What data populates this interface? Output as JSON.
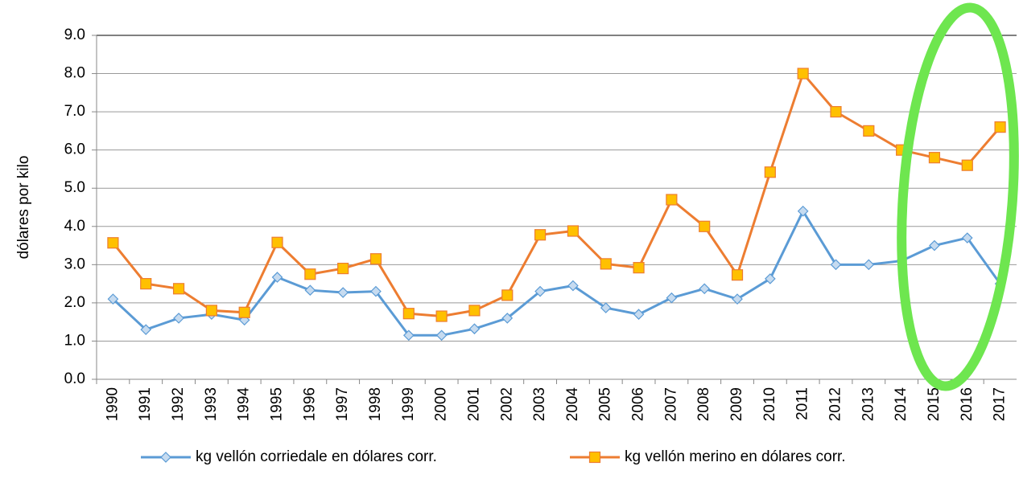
{
  "chart_data": {
    "type": "line",
    "y_label": "dólares por kilo",
    "categories": [
      "1990",
      "1991",
      "1992",
      "1993",
      "1994",
      "1995",
      "1996",
      "1997",
      "1998",
      "1999",
      "2000",
      "2001",
      "2002",
      "2003",
      "2004",
      "2005",
      "2006",
      "2007",
      "2008",
      "2009",
      "2010",
      "2011",
      "2012",
      "2013",
      "2014",
      "2015",
      "2016",
      "2017"
    ],
    "series": [
      {
        "name": "kg vellón corriedale en dólares corr.",
        "color": "#5b9bd5",
        "marker": "diamond",
        "values": [
          2.1,
          1.3,
          1.6,
          1.7,
          1.55,
          2.67,
          2.33,
          2.27,
          2.3,
          1.15,
          1.15,
          1.32,
          1.6,
          2.3,
          2.45,
          1.87,
          1.7,
          2.13,
          2.37,
          2.1,
          2.63,
          4.4,
          3.0,
          3.0,
          3.1,
          3.5,
          3.7,
          2.5
        ]
      },
      {
        "name": "kg vellón merino en dólares corr.",
        "color": "#ed7d31",
        "marker": "square",
        "values": [
          3.57,
          2.5,
          2.37,
          1.8,
          1.75,
          3.58,
          2.75,
          2.9,
          3.15,
          1.72,
          1.65,
          1.8,
          2.2,
          3.78,
          3.88,
          3.02,
          2.92,
          4.7,
          4.0,
          2.73,
          5.42,
          8.0,
          7.0,
          6.5,
          6.0,
          5.8,
          5.6,
          6.6
        ]
      }
    ],
    "ylim": [
      0,
      9
    ],
    "yticks": [
      {
        "value": 0,
        "label": "0.0"
      },
      {
        "value": 1,
        "label": "1.0"
      },
      {
        "value": 2,
        "label": "2.0"
      },
      {
        "value": 3,
        "label": "3.0"
      },
      {
        "value": 4,
        "label": "4.0"
      },
      {
        "value": 5,
        "label": "5.0"
      },
      {
        "value": 6,
        "label": "6.0"
      },
      {
        "value": 7,
        "label": "7.0"
      },
      {
        "value": 8,
        "label": "8.0"
      },
      {
        "value": 9,
        "label": "9.0"
      }
    ],
    "grid": true,
    "legend": "bottom"
  }
}
